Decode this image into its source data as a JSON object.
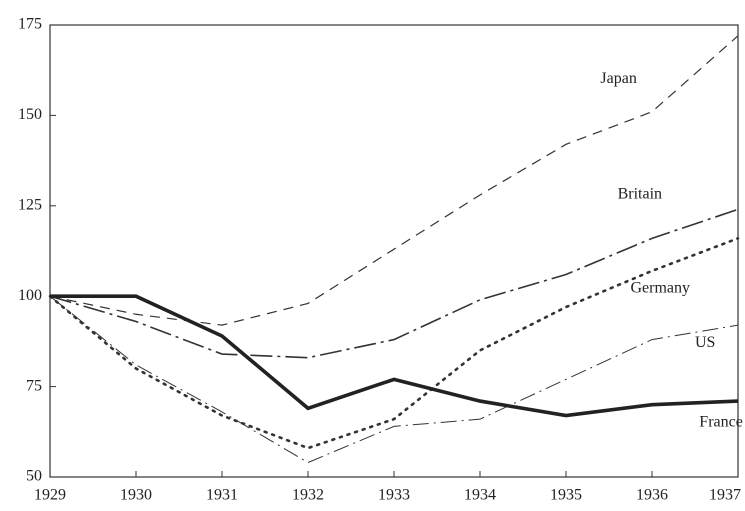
{
  "chart_data": {
    "type": "line",
    "x": [
      1929,
      1930,
      1931,
      1932,
      1933,
      1934,
      1935,
      1936,
      1937
    ],
    "xlim": [
      1929,
      1937
    ],
    "xticks": [
      1929,
      1930,
      1931,
      1932,
      1933,
      1934,
      1935,
      1936,
      1937
    ],
    "ylim": [
      50,
      175
    ],
    "yticks": [
      50,
      75,
      100,
      125,
      150,
      175
    ],
    "series": [
      {
        "name": "Japan",
        "color": "#333333",
        "values": [
          100,
          95,
          92,
          98,
          113,
          128,
          142,
          151,
          172
        ]
      },
      {
        "name": "Britain",
        "color": "#333333",
        "values": [
          100,
          93,
          84,
          83,
          88,
          99,
          106,
          116,
          124
        ]
      },
      {
        "name": "Germany",
        "color": "#333333",
        "values": [
          100,
          80,
          67,
          58,
          66,
          85,
          97,
          107,
          116
        ]
      },
      {
        "name": "US",
        "color": "#333333",
        "values": [
          100,
          81,
          68,
          54,
          64,
          66,
          77,
          88,
          92
        ]
      },
      {
        "name": "France",
        "color": "#222222",
        "values": [
          100,
          100,
          89,
          69,
          77,
          71,
          67,
          70,
          71
        ]
      }
    ]
  }
}
